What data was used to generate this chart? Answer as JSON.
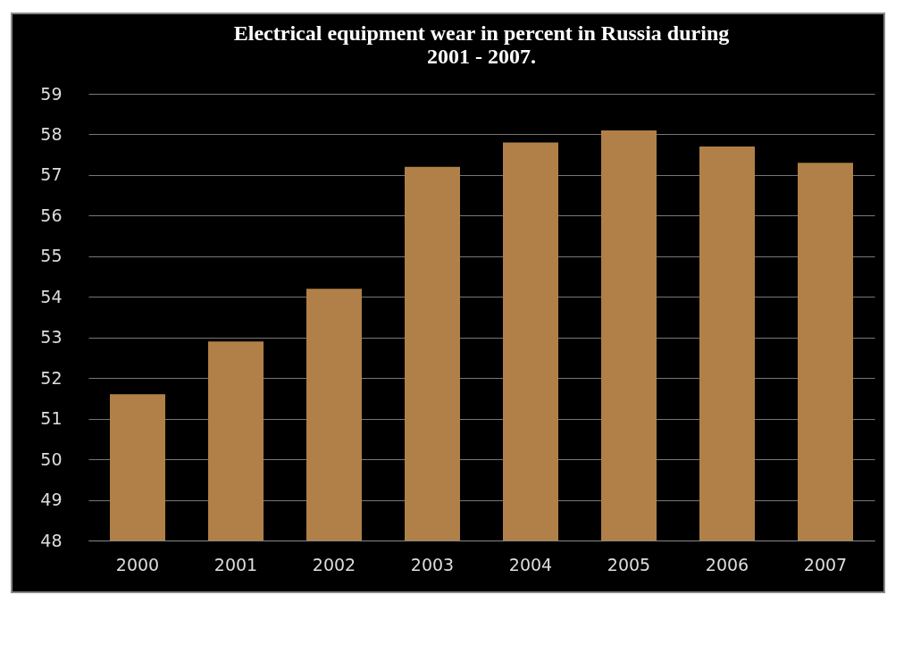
{
  "chart_data": {
    "type": "bar",
    "title": [
      "Electrical equipment wear in percent in Russia during",
      "2001 - 2007."
    ],
    "categories": [
      "2000",
      "2001",
      "2002",
      "2003",
      "2004",
      "2005",
      "2006",
      "2007"
    ],
    "values": [
      51.6,
      52.9,
      54.2,
      57.2,
      57.8,
      58.1,
      57.7,
      57.3
    ],
    "color": "#b08048",
    "ylim": [
      48,
      59
    ],
    "yticks": [
      48,
      49,
      50,
      51,
      52,
      53,
      54,
      55,
      56,
      57,
      58,
      59
    ],
    "grid": "y"
  }
}
